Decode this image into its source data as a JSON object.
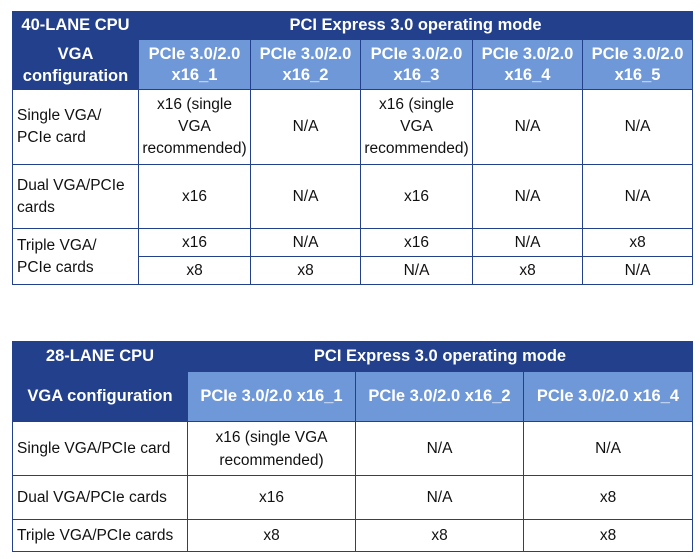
{
  "table1": {
    "corner": "40-LANE CPU",
    "mode_header": "PCI Express 3.0 operating mode",
    "vga_config_header": [
      "VGA",
      "configuration"
    ],
    "slots": [
      [
        "PCIe 3.0/2.0",
        "x16_1"
      ],
      [
        "PCIe 3.0/2.0",
        "x16_2"
      ],
      [
        "PCIe 3.0/2.0",
        "x16_3"
      ],
      [
        "PCIe 3.0/2.0",
        "x16_4"
      ],
      [
        "PCIe 3.0/2.0",
        "x16_5"
      ]
    ],
    "rows": [
      {
        "label": [
          "Single VGA/",
          "PCIe card"
        ],
        "cells": [
          [
            "x16 (single",
            "VGA",
            "recommended)"
          ],
          [
            "N/A"
          ],
          [
            "x16 (single",
            "VGA",
            "recommended)"
          ],
          [
            "N/A"
          ],
          [
            "N/A"
          ]
        ]
      },
      {
        "label": [
          "Dual VGA/PCIe",
          "cards"
        ],
        "cells": [
          [
            "x16"
          ],
          [
            "N/A"
          ],
          [
            "x16"
          ],
          [
            "N/A"
          ],
          [
            "N/A"
          ]
        ]
      },
      {
        "label": [
          "Triple VGA/",
          "PCIe cards"
        ],
        "lines": [
          [
            "x16",
            "N/A",
            "x16",
            "N/A",
            "x8"
          ],
          [
            "x8",
            "x8",
            "N/A",
            "x8",
            "N/A"
          ]
        ]
      }
    ]
  },
  "table2": {
    "corner": "28-LANE CPU",
    "mode_header": "PCI Express 3.0 operating mode",
    "vga_config_header": "VGA configuration",
    "slots": [
      "PCIe 3.0/2.0 x16_1",
      "PCIe 3.0/2.0 x16_2",
      "PCIe 3.0/2.0 x16_4"
    ],
    "rows": [
      {
        "label": "Single VGA/PCIe card",
        "cells": [
          [
            "x16 (single VGA",
            "recommended)"
          ],
          [
            "N/A"
          ],
          [
            "N/A"
          ]
        ]
      },
      {
        "label": "Dual VGA/PCIe cards",
        "cells": [
          [
            "x16"
          ],
          [
            "N/A"
          ],
          [
            "x8"
          ]
        ]
      },
      {
        "label": "Triple VGA/PCIe cards",
        "cells": [
          [
            "x8"
          ],
          [
            "x8"
          ],
          [
            "x8"
          ]
        ]
      }
    ]
  },
  "colors": {
    "header_dark": "#22408c",
    "header_light": "#6f98d8",
    "border": "#22408c"
  }
}
